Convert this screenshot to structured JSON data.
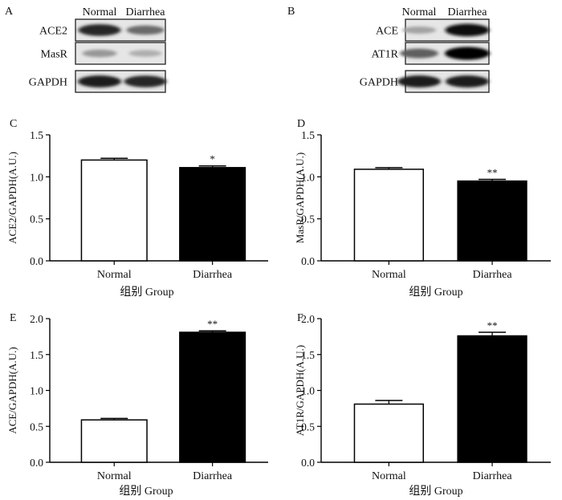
{
  "figure": {
    "group_label": "组别  Group",
    "blot_panels": [
      {
        "id": "A",
        "columns": [
          "Normal",
          "Diarrhea"
        ],
        "rows": [
          {
            "label": "ACE2",
            "band_strength": [
              0.85,
              0.55
            ]
          },
          {
            "label": "MasR",
            "band_strength": [
              0.35,
              0.25
            ]
          },
          {
            "label": "GAPDH",
            "band_strength": [
              0.9,
              0.85
            ]
          }
        ]
      },
      {
        "id": "B",
        "columns": [
          "Normal",
          "Diarrhea"
        ],
        "rows": [
          {
            "label": "ACE",
            "band_strength": [
              0.3,
              0.95
            ]
          },
          {
            "label": "AT1R",
            "band_strength": [
              0.6,
              1.0
            ]
          },
          {
            "label": "GAPDH",
            "band_strength": [
              0.9,
              0.9
            ]
          }
        ]
      }
    ]
  },
  "chart_data": [
    {
      "id": "C",
      "type": "bar",
      "categories": [
        "Normal",
        "Diarrhea"
      ],
      "values": [
        1.2,
        1.11
      ],
      "errors": [
        0.02,
        0.02
      ],
      "significance": [
        "",
        "*"
      ],
      "ylabel": "ACE2/GAPDH(A.U.)",
      "xlabel": "",
      "ylim": [
        0,
        1.5
      ],
      "yticks": [
        "0.0",
        "0.5",
        "1.0",
        "1.5"
      ],
      "fill": [
        "#ffffff",
        "#000000"
      ]
    },
    {
      "id": "D",
      "type": "bar",
      "categories": [
        "Normal",
        "Diarrhea"
      ],
      "values": [
        1.09,
        0.95
      ],
      "errors": [
        0.02,
        0.02
      ],
      "significance": [
        "",
        "**"
      ],
      "ylabel": "MasR/GAPDH(A.U.)",
      "xlabel": "",
      "ylim": [
        0,
        1.5
      ],
      "yticks": [
        "0.0",
        "0.5",
        "1.0",
        "1.5"
      ],
      "fill": [
        "#ffffff",
        "#000000"
      ]
    },
    {
      "id": "E",
      "type": "bar",
      "categories": [
        "Normal",
        "Diarrhea"
      ],
      "values": [
        0.59,
        1.81
      ],
      "errors": [
        0.02,
        0.02
      ],
      "significance": [
        "",
        "**"
      ],
      "ylabel": "ACE/GAPDH(A.U.)",
      "xlabel": "",
      "ylim": [
        0,
        2.0
      ],
      "yticks": [
        "0.0",
        "0.5",
        "1.0",
        "1.5",
        "2.0"
      ],
      "fill": [
        "#ffffff",
        "#000000"
      ]
    },
    {
      "id": "F",
      "type": "bar",
      "categories": [
        "Normal",
        "Diarrhea"
      ],
      "values": [
        0.81,
        1.76
      ],
      "errors": [
        0.05,
        0.05
      ],
      "significance": [
        "",
        "**"
      ],
      "ylabel": "AT1R/GAPDH(A.U.)",
      "xlabel": "",
      "ylim": [
        0,
        2.0
      ],
      "yticks": [
        "0.0",
        "0.5",
        "1.0",
        "1.5",
        "2.0"
      ],
      "fill": [
        "#ffffff",
        "#000000"
      ]
    }
  ]
}
